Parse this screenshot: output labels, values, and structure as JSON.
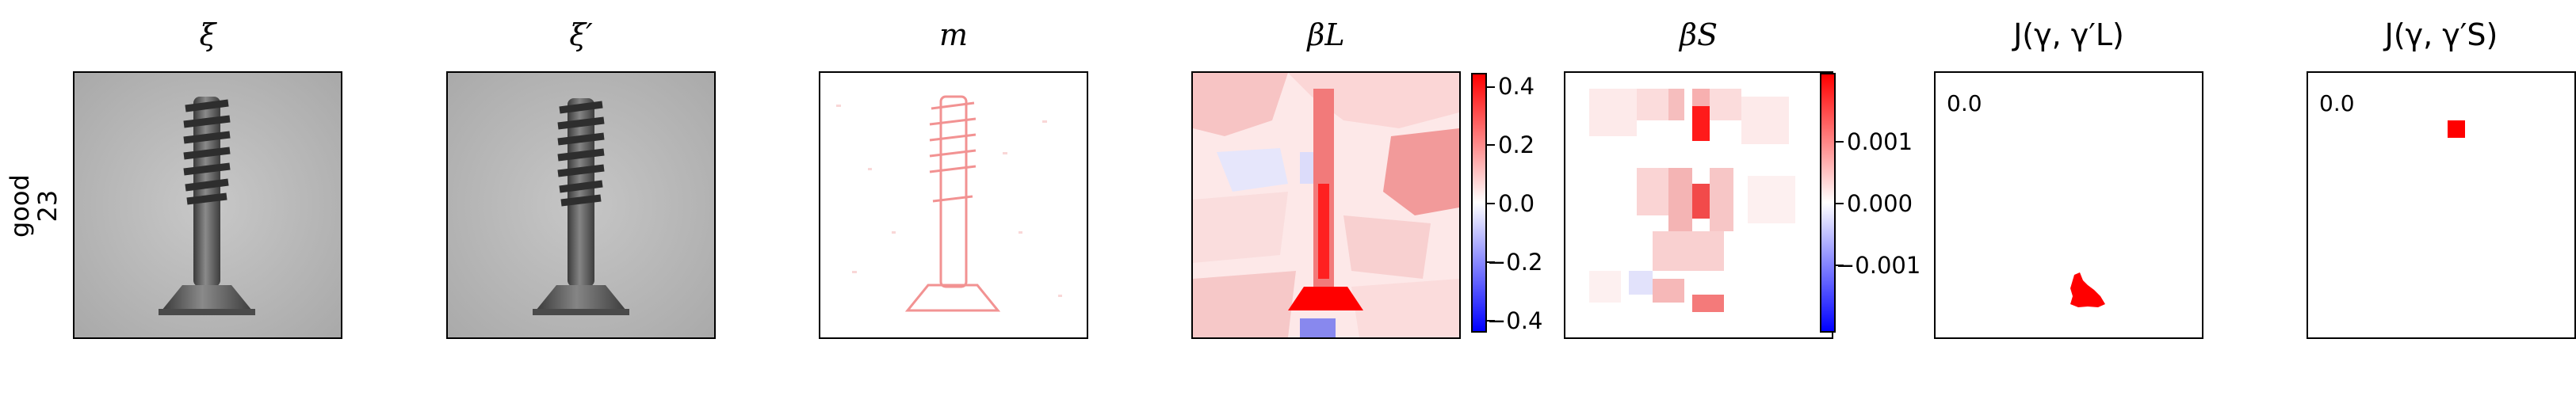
{
  "row_label": {
    "line1": "good",
    "line2": "23"
  },
  "panels": {
    "xi": {
      "title": "ξ"
    },
    "xi_prime": {
      "title": "ξ′"
    },
    "m": {
      "title": "m"
    },
    "beta_l": {
      "title": "βL",
      "colorbar_ticks": [
        "0.4",
        "0.2",
        "0.0",
        "−0.2",
        "−0.4"
      ],
      "colorbar_colors": {
        "max": "#ff0000",
        "mid": "#ffffff",
        "min": "#0000ff"
      }
    },
    "beta_s": {
      "title": "βS",
      "colorbar_ticks": [
        "0.001",
        "0.000",
        "−0.001"
      ],
      "colorbar_colors": {
        "max": "#ff0000",
        "mid": "#ffffff",
        "min": "#0000ff"
      }
    },
    "j_l": {
      "title": "J(γ, γ′L)",
      "value": "0.0",
      "mark_color": "#ff0000"
    },
    "j_s": {
      "title": "J(γ, γ′S)",
      "value": "0.0",
      "mark_color": "#ff0000"
    }
  }
}
